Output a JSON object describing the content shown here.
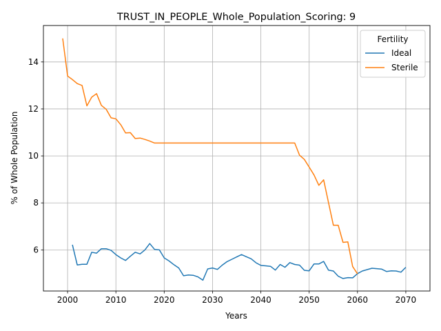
{
  "chart_data": {
    "type": "line",
    "title": "TRUST_IN_PEOPLE_Whole_Population_Scoring: 9",
    "xlabel": "Years",
    "ylabel": "% of Whole Population",
    "xlim": [
      1995,
      2075
    ],
    "ylim": [
      4.25,
      15.55
    ],
    "xticks": [
      2000,
      2010,
      2020,
      2030,
      2040,
      2050,
      2060,
      2070
    ],
    "yticks": [
      6,
      8,
      10,
      12,
      14
    ],
    "grid": true,
    "legend": {
      "title": "Fertility",
      "position": "top-right"
    },
    "series": [
      {
        "name": "Ideal",
        "color": "#1f77b4",
        "x": [
          2001,
          2002,
          2003,
          2004,
          2005,
          2006,
          2007,
          2008,
          2009,
          2010,
          2011,
          2012,
          2013,
          2014,
          2015,
          2016,
          2017,
          2018,
          2019,
          2020,
          2021,
          2022,
          2023,
          2024,
          2025,
          2026,
          2027,
          2028,
          2029,
          2030,
          2031,
          2032,
          2033,
          2034,
          2035,
          2036,
          2037,
          2038,
          2039,
          2040,
          2041,
          2042,
          2043,
          2044,
          2045,
          2046,
          2047,
          2048,
          2049,
          2050,
          2051,
          2052,
          2053,
          2054,
          2055,
          2056,
          2057,
          2058,
          2059,
          2060,
          2061,
          2062,
          2063,
          2064,
          2065,
          2066,
          2067,
          2068,
          2069,
          2070
        ],
        "values": [
          6.22,
          5.36,
          5.39,
          5.39,
          5.9,
          5.86,
          6.05,
          6.05,
          5.98,
          5.8,
          5.66,
          5.55,
          5.73,
          5.9,
          5.83,
          6.0,
          6.27,
          6.02,
          6.0,
          5.66,
          5.53,
          5.37,
          5.23,
          4.9,
          4.93,
          4.92,
          4.85,
          4.71,
          5.19,
          5.23,
          5.17,
          5.35,
          5.5,
          5.6,
          5.7,
          5.8,
          5.71,
          5.62,
          5.45,
          5.34,
          5.32,
          5.3,
          5.14,
          5.38,
          5.26,
          5.46,
          5.38,
          5.35,
          5.13,
          5.11,
          5.4,
          5.4,
          5.51,
          5.14,
          5.1,
          4.88,
          4.78,
          4.82,
          4.81,
          4.99,
          5.1,
          5.16,
          5.22,
          5.2,
          5.18,
          5.08,
          5.11,
          5.1,
          5.05,
          5.26
        ]
      },
      {
        "name": "Sterile",
        "color": "#ff7f0e",
        "x": [
          1999,
          2000,
          2001,
          2002,
          2003,
          2004,
          2005,
          2006,
          2007,
          2008,
          2009,
          2010,
          2011,
          2012,
          2013,
          2014,
          2015,
          2016,
          2017,
          2018,
          2019,
          2020,
          2021,
          2022,
          2023,
          2024,
          2025,
          2026,
          2027,
          2028,
          2029,
          2030,
          2031,
          2032,
          2033,
          2034,
          2035,
          2036,
          2037,
          2038,
          2039,
          2040,
          2041,
          2042,
          2043,
          2044,
          2045,
          2046,
          2047,
          2048,
          2049,
          2050,
          2051,
          2052,
          2053,
          2054,
          2055,
          2056,
          2057,
          2058,
          2059,
          2060
        ],
        "values": [
          15.0,
          13.4,
          13.25,
          13.08,
          13.0,
          12.13,
          12.5,
          12.65,
          12.15,
          11.98,
          11.62,
          11.58,
          11.33,
          10.98,
          10.99,
          10.74,
          10.76,
          10.7,
          10.63,
          10.55,
          10.55,
          10.55,
          10.55,
          10.55,
          10.55,
          10.55,
          10.55,
          10.55,
          10.55,
          10.55,
          10.55,
          10.55,
          10.55,
          10.55,
          10.55,
          10.55,
          10.55,
          10.55,
          10.55,
          10.55,
          10.55,
          10.55,
          10.55,
          10.55,
          10.55,
          10.55,
          10.55,
          10.55,
          10.55,
          10.03,
          9.85,
          9.52,
          9.19,
          8.75,
          8.98,
          8.02,
          7.05,
          7.05,
          6.32,
          6.34,
          5.29,
          4.98
        ]
      }
    ]
  }
}
